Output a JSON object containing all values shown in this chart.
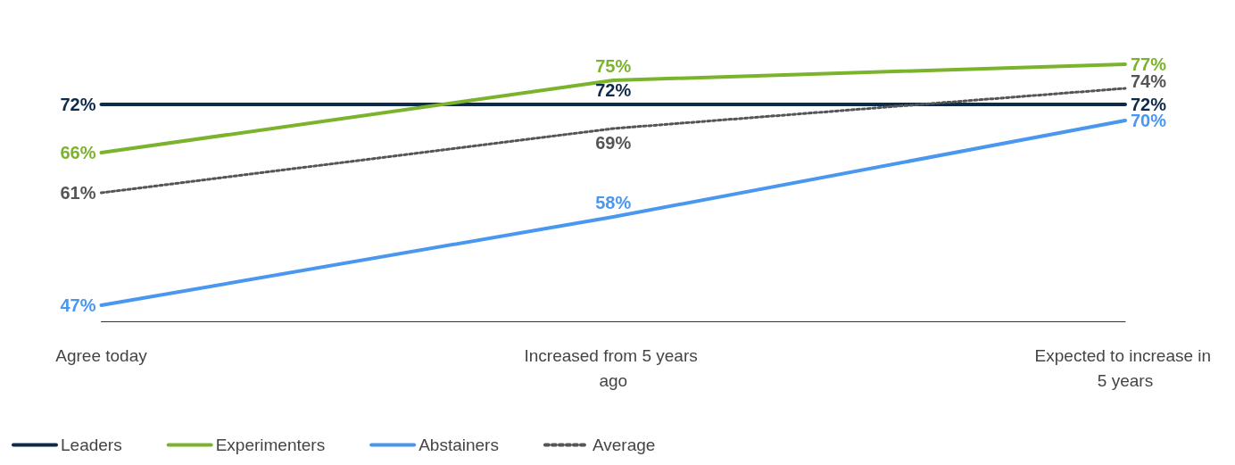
{
  "chart_data": {
    "type": "line",
    "categories": [
      "Agree today",
      "Increased from 5 years ago",
      "Expected to increase in 5 years"
    ],
    "series": [
      {
        "name": "Leaders",
        "color": "#0d2a4a",
        "values": [
          72,
          72,
          72
        ],
        "value_labels": [
          "72%",
          "72%",
          "72%"
        ],
        "line_style": "solid"
      },
      {
        "name": "Experimenters",
        "color": "#7cb32d",
        "values": [
          66,
          75,
          77
        ],
        "value_labels": [
          "66%",
          "75%",
          "77%"
        ],
        "line_style": "solid"
      },
      {
        "name": "Abstainers",
        "color": "#4a97f0",
        "values": [
          47,
          58,
          70
        ],
        "value_labels": [
          "47%",
          "58%",
          "70%"
        ],
        "line_style": "solid"
      },
      {
        "name": "Average",
        "color": "#555555",
        "values": [
          61,
          69,
          74
        ],
        "value_labels": [
          "61%",
          "69%",
          "74%"
        ],
        "line_style": "dotted"
      }
    ],
    "legend": "bottom left",
    "grid": false,
    "marker": "none"
  }
}
